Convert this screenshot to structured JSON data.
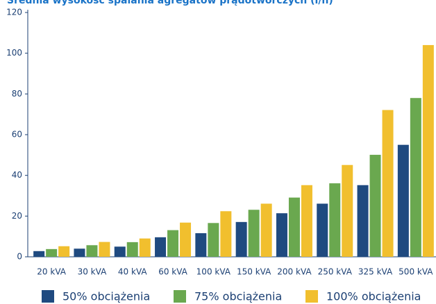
{
  "chart_data": {
    "type": "bar",
    "title": "Średnia wysokość spalania agregatów prądotwórczych (l/h)",
    "categories": [
      "20 kVA",
      "30 kVA",
      "40 kVA",
      "60 kVA",
      "100 kVA",
      "150 kVA",
      "200 kVA",
      "250 kVA",
      "325 kVA",
      "500 kVA"
    ],
    "series": [
      {
        "name": "50% obciążenia",
        "color": "#1f4a80",
        "values": [
          2.8,
          4,
          5,
          9.6,
          11.6,
          17.1,
          21.4,
          26.1,
          35.2,
          55
        ]
      },
      {
        "name": "75% obciążenia",
        "color": "#6aa84f",
        "values": [
          3.8,
          5.7,
          7.2,
          13.1,
          16.6,
          23.1,
          29.1,
          36.1,
          50.1,
          78
        ]
      },
      {
        "name": "100% obciążenia",
        "color": "#f1bf2e",
        "values": [
          5.2,
          7.3,
          9,
          16.8,
          22.4,
          26.1,
          35.2,
          45.1,
          72.1,
          104
        ]
      }
    ],
    "ylim": [
      0,
      120
    ],
    "yticks": [
      0,
      20,
      40,
      60,
      80,
      100,
      120
    ],
    "grid": false
  }
}
